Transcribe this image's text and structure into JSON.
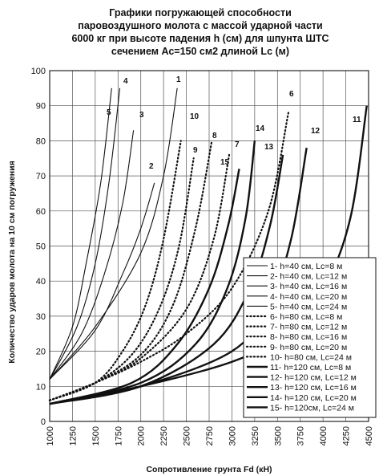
{
  "chart_data": {
    "type": "line",
    "title_lines": [
      "Графики погружающей способности",
      "паровоздушного молота с массой ударной части",
      "6000 кг при высоте падения h (см) для шпунта ШТС",
      "сечением Ас=150 см2 длиной Lc (м)"
    ],
    "xlabel": "Сопротивление грунта Fd (кН)",
    "ylabel": "Количество ударов молота на 10 см погружения",
    "xlim": [
      1000,
      4500
    ],
    "ylim": [
      0,
      100
    ],
    "x_ticks": [
      1000,
      1250,
      1500,
      1750,
      2000,
      2250,
      2500,
      2750,
      3000,
      3250,
      3500,
      3750,
      4000,
      4250,
      4500
    ],
    "x_tick_labels": [
      "1000",
      "1250",
      "1500",
      "1750",
      "2000",
      "2250",
      "2500",
      "2750",
      "3000",
      "3250",
      "3500",
      "3750",
      "4000",
      "4250",
      "4500"
    ],
    "y_ticks": [
      0,
      10,
      20,
      30,
      40,
      50,
      60,
      70,
      80,
      90,
      100
    ],
    "y_tick_labels": [
      "0",
      "10",
      "20",
      "30",
      "40",
      "50",
      "60",
      "70",
      "80",
      "90",
      "100"
    ],
    "grid": true,
    "legend_position": "bottom-right",
    "series": [
      {
        "id": "1",
        "label_text": "1",
        "legend": "1- h=40 см, Lc=8 м",
        "style": "thin",
        "points": [
          [
            1000,
            12
          ],
          [
            1500,
            27
          ],
          [
            2000,
            48
          ],
          [
            2250,
            70
          ],
          [
            2400,
            95
          ]
        ]
      },
      {
        "id": "2",
        "label_text": "2",
        "legend": "2- h=40 см, Lc=12 м",
        "style": "thin",
        "points": [
          [
            1000,
            12
          ],
          [
            1500,
            26
          ],
          [
            1800,
            42
          ],
          [
            2000,
            55
          ],
          [
            2150,
            68
          ]
        ]
      },
      {
        "id": "3",
        "label_text": "3",
        "legend": "3- h=40 см, Lc=16 м",
        "style": "thin",
        "points": [
          [
            1000,
            12
          ],
          [
            1350,
            25
          ],
          [
            1600,
            42
          ],
          [
            1800,
            62
          ],
          [
            1920,
            83
          ]
        ]
      },
      {
        "id": "4",
        "label_text": "4",
        "legend": "4- h=40 см, Lc=20 м",
        "style": "thin",
        "points": [
          [
            1000,
            12
          ],
          [
            1300,
            27
          ],
          [
            1500,
            45
          ],
          [
            1650,
            68
          ],
          [
            1770,
            95
          ]
        ]
      },
      {
        "id": "5",
        "label_text": "5",
        "legend": "5- h=40 см, Lc=24 м",
        "style": "thin",
        "points": [
          [
            1000,
            12
          ],
          [
            1250,
            27
          ],
          [
            1400,
            45
          ],
          [
            1560,
            68
          ],
          [
            1680,
            95
          ]
        ]
      },
      {
        "id": "6",
        "label_text": "6",
        "legend": "6- h=80 см, Lc=8 м",
        "style": "dot",
        "points": [
          [
            1000,
            6
          ],
          [
            1500,
            11
          ],
          [
            2000,
            17
          ],
          [
            2500,
            25
          ],
          [
            3000,
            38
          ],
          [
            3400,
            60
          ],
          [
            3620,
            88
          ]
        ]
      },
      {
        "id": "7",
        "label_text": "7",
        "legend": "7- h=80 см, Lc=12 м",
        "style": "dot",
        "points": [
          [
            1000,
            6
          ],
          [
            1500,
            11
          ],
          [
            2000,
            18
          ],
          [
            2500,
            32
          ],
          [
            2800,
            52
          ],
          [
            2970,
            76
          ]
        ]
      },
      {
        "id": "8",
        "label_text": "8",
        "legend": "8- h=80 см, Lc=16 м",
        "style": "dot",
        "points": [
          [
            1000,
            6
          ],
          [
            1500,
            11
          ],
          [
            2000,
            19
          ],
          [
            2350,
            33
          ],
          [
            2600,
            55
          ],
          [
            2780,
            80
          ]
        ]
      },
      {
        "id": "9",
        "label_text": "9",
        "legend": "9- h=80 см, Lc=20 м",
        "style": "dot",
        "points": [
          [
            1000,
            6
          ],
          [
            1500,
            11
          ],
          [
            1900,
            19
          ],
          [
            2200,
            32
          ],
          [
            2420,
            50
          ],
          [
            2580,
            75
          ]
        ]
      },
      {
        "id": "10",
        "label_text": "10",
        "legend": "10- h=80 см, Lc=24 м",
        "style": "dot",
        "points": [
          [
            1000,
            6
          ],
          [
            1500,
            11
          ],
          [
            1800,
            20
          ],
          [
            2050,
            33
          ],
          [
            2250,
            52
          ],
          [
            2440,
            80
          ]
        ]
      },
      {
        "id": "11",
        "label_text": "11",
        "legend": "11- h=120 см, Lc=8 м",
        "style": "thick",
        "points": [
          [
            1000,
            5
          ],
          [
            2000,
            10
          ],
          [
            3000,
            17
          ],
          [
            3500,
            24
          ],
          [
            4000,
            38
          ],
          [
            4300,
            58
          ],
          [
            4480,
            90
          ]
        ]
      },
      {
        "id": "12",
        "label_text": "12",
        "legend": "12- h=120 см, Lc=12 м",
        "style": "thick",
        "points": [
          [
            1000,
            5
          ],
          [
            2000,
            10
          ],
          [
            3000,
            20
          ],
          [
            3400,
            33
          ],
          [
            3650,
            52
          ],
          [
            3820,
            78
          ]
        ]
      },
      {
        "id": "13",
        "label_text": "13",
        "legend": "13- h=120 см, Lc=16 м",
        "style": "thick",
        "points": [
          [
            1000,
            5
          ],
          [
            2000,
            10
          ],
          [
            2800,
            22
          ],
          [
            3200,
            38
          ],
          [
            3420,
            56
          ],
          [
            3560,
            76
          ]
        ]
      },
      {
        "id": "14",
        "label_text": "14",
        "legend": "14- h=120 см, Lc=20 м",
        "style": "thick",
        "points": [
          [
            1000,
            5
          ],
          [
            2000,
            11
          ],
          [
            2600,
            22
          ],
          [
            2950,
            38
          ],
          [
            3150,
            58
          ],
          [
            3250,
            80
          ]
        ]
      },
      {
        "id": "15",
        "label_text": "15",
        "legend": "15- h=120см, Lc=24 м",
        "style": "thick",
        "points": [
          [
            1000,
            5
          ],
          [
            1900,
            11
          ],
          [
            2400,
            22
          ],
          [
            2750,
            38
          ],
          [
            2960,
            56
          ],
          [
            3080,
            72
          ]
        ]
      }
    ]
  }
}
